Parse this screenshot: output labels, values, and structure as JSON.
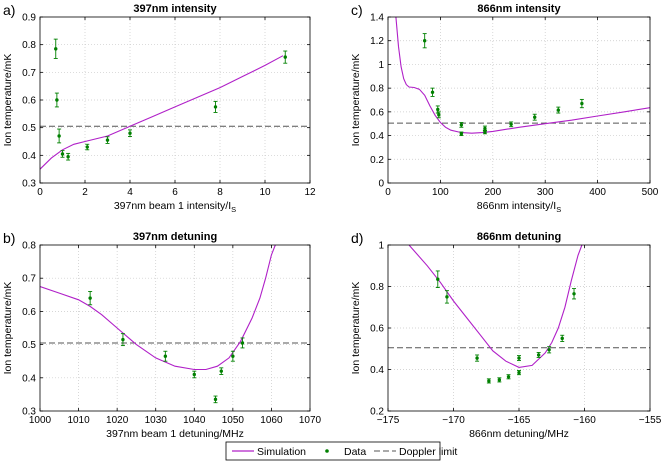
{
  "legend": {
    "simulation": "Simulation",
    "data": "Data",
    "doppler": "Doppler limit"
  },
  "colors": {
    "simulation": "#b020c8",
    "data": "#008000",
    "doppler": "#555555",
    "grid": "#c8c8c8"
  },
  "chart_data": [
    {
      "id": "a",
      "letter": "a)",
      "type": "scatter",
      "title": "397nm intensity",
      "xlabel": "397nm beam 1 intensity/I",
      "xlabel_sub": "S",
      "ylabel": "Ion temperature/mK",
      "xlim": [
        0,
        12
      ],
      "ylim": [
        0.3,
        0.9
      ],
      "xticks": [
        0,
        2,
        4,
        6,
        8,
        10,
        12
      ],
      "yticks": [
        0.3,
        0.4,
        0.5,
        0.6,
        0.7,
        0.8,
        0.9
      ],
      "xtick_labels": [
        "0",
        "2",
        "4",
        "6",
        "8",
        "10",
        "12"
      ],
      "ytick_labels": [
        "0.3",
        "0.4",
        "0.5",
        "0.6",
        "0.7",
        "0.8",
        "0.9"
      ],
      "doppler_limit": 0.505,
      "simulation": {
        "x": [
          0.0,
          0.5,
          1.0,
          1.5,
          2.0,
          3.0,
          4.0,
          5.0,
          6.0,
          7.0,
          8.0,
          9.0,
          10.0,
          10.8
        ],
        "y": [
          0.35,
          0.39,
          0.42,
          0.44,
          0.45,
          0.47,
          0.505,
          0.54,
          0.575,
          0.61,
          0.645,
          0.685,
          0.725,
          0.76
        ]
      },
      "data": [
        {
          "x": 0.7,
          "y": 0.785,
          "err": 0.035
        },
        {
          "x": 0.75,
          "y": 0.6,
          "err": 0.025
        },
        {
          "x": 0.85,
          "y": 0.47,
          "err": 0.025
        },
        {
          "x": 1.0,
          "y": 0.405,
          "err": 0.012
        },
        {
          "x": 1.25,
          "y": 0.395,
          "err": 0.012
        },
        {
          "x": 2.1,
          "y": 0.43,
          "err": 0.01
        },
        {
          "x": 3.0,
          "y": 0.455,
          "err": 0.012
        },
        {
          "x": 4.0,
          "y": 0.48,
          "err": 0.012
        },
        {
          "x": 7.8,
          "y": 0.575,
          "err": 0.02
        },
        {
          "x": 10.9,
          "y": 0.755,
          "err": 0.022
        }
      ]
    },
    {
      "id": "c",
      "letter": "c)",
      "type": "scatter",
      "title": "866nm intensity",
      "xlabel": "866nm intensity/I",
      "xlabel_sub": "S",
      "ylabel": "Ion temperature/mK",
      "xlim": [
        0,
        500
      ],
      "ylim": [
        0,
        1.4
      ],
      "xticks": [
        0,
        100,
        200,
        300,
        400,
        500
      ],
      "yticks": [
        0,
        0.2,
        0.4,
        0.6,
        0.8,
        1.0,
        1.2,
        1.4
      ],
      "xtick_labels": [
        "0",
        "100",
        "200",
        "300",
        "400",
        "500"
      ],
      "ytick_labels": [
        "0",
        "0.2",
        "0.4",
        "0.6",
        "0.8",
        "1",
        "1.2",
        "1.4"
      ],
      "doppler_limit": 0.505,
      "simulation": {
        "x": [
          15,
          20,
          25,
          30,
          35,
          40,
          50,
          60,
          70,
          80,
          90,
          100,
          110,
          120,
          140,
          160,
          180,
          200,
          250,
          300,
          350,
          400,
          450,
          500
        ],
        "y": [
          1.4,
          1.15,
          0.98,
          0.88,
          0.83,
          0.81,
          0.805,
          0.79,
          0.74,
          0.65,
          0.57,
          0.51,
          0.47,
          0.445,
          0.425,
          0.42,
          0.425,
          0.435,
          0.47,
          0.5,
          0.53,
          0.565,
          0.6,
          0.635
        ]
      },
      "data": [
        {
          "x": 70,
          "y": 1.2,
          "err": 0.06
        },
        {
          "x": 85,
          "y": 0.765,
          "err": 0.035
        },
        {
          "x": 95,
          "y": 0.62,
          "err": 0.03
        },
        {
          "x": 97,
          "y": 0.575,
          "err": 0.025
        },
        {
          "x": 140,
          "y": 0.49,
          "err": 0.02
        },
        {
          "x": 140,
          "y": 0.415,
          "err": 0.015
        },
        {
          "x": 185,
          "y": 0.46,
          "err": 0.02
        },
        {
          "x": 185,
          "y": 0.43,
          "err": 0.015
        },
        {
          "x": 235,
          "y": 0.495,
          "err": 0.02
        },
        {
          "x": 280,
          "y": 0.555,
          "err": 0.025
        },
        {
          "x": 325,
          "y": 0.615,
          "err": 0.025
        },
        {
          "x": 370,
          "y": 0.67,
          "err": 0.035
        }
      ]
    },
    {
      "id": "b",
      "letter": "b)",
      "type": "scatter",
      "title": "397nm detuning",
      "xlabel": "397nm beam 1 detuning/MHz",
      "xlabel_sub": "",
      "ylabel": "Ion temperature/mK",
      "xlim": [
        1000,
        1070
      ],
      "ylim": [
        0.3,
        0.8
      ],
      "xticks": [
        1000,
        1010,
        1020,
        1030,
        1040,
        1050,
        1060,
        1070
      ],
      "yticks": [
        0.3,
        0.4,
        0.5,
        0.6,
        0.7,
        0.8
      ],
      "xtick_labels": [
        "1000",
        "1010",
        "1020",
        "1030",
        "1040",
        "1050",
        "1060",
        "1070"
      ],
      "ytick_labels": [
        "0.3",
        "0.4",
        "0.5",
        "0.6",
        "0.7",
        "0.8"
      ],
      "doppler_limit": 0.505,
      "simulation": {
        "x": [
          1000,
          1005,
          1010,
          1013,
          1016,
          1020,
          1025,
          1030,
          1035,
          1040,
          1043,
          1046,
          1049,
          1052,
          1055,
          1057,
          1058.5,
          1060,
          1061
        ],
        "y": [
          0.675,
          0.655,
          0.635,
          0.615,
          0.59,
          0.55,
          0.5,
          0.46,
          0.435,
          0.425,
          0.425,
          0.435,
          0.46,
          0.51,
          0.58,
          0.64,
          0.7,
          0.77,
          0.8
        ]
      },
      "data": [
        {
          "x": 1013,
          "y": 0.64,
          "err": 0.02
        },
        {
          "x": 1021.5,
          "y": 0.515,
          "err": 0.018
        },
        {
          "x": 1032.5,
          "y": 0.465,
          "err": 0.015
        },
        {
          "x": 1040,
          "y": 0.41,
          "err": 0.01
        },
        {
          "x": 1045.5,
          "y": 0.335,
          "err": 0.01
        },
        {
          "x": 1047,
          "y": 0.42,
          "err": 0.01
        },
        {
          "x": 1050,
          "y": 0.465,
          "err": 0.015
        },
        {
          "x": 1052.5,
          "y": 0.505,
          "err": 0.015
        }
      ]
    },
    {
      "id": "d",
      "letter": "d)",
      "type": "scatter",
      "title": "866nm detuning",
      "xlabel": "866nm detuning/MHz",
      "xlabel_sub": "",
      "ylabel": "Ion temperature/mK",
      "xlim": [
        -175,
        -155
      ],
      "ylim": [
        0.2,
        1.0
      ],
      "xticks": [
        -175,
        -170,
        -165,
        -160,
        -155
      ],
      "yticks": [
        0.2,
        0.4,
        0.6,
        0.8,
        1.0
      ],
      "xtick_labels": [
        "−175",
        "−170",
        "−165",
        "−160",
        "−155"
      ],
      "ytick_labels": [
        "0.2",
        "0.4",
        "0.6",
        "0.8",
        "1"
      ],
      "doppler_limit": 0.505,
      "simulation": {
        "x": [
          -173.4,
          -172,
          -171,
          -170,
          -169,
          -168,
          -167,
          -166,
          -165,
          -164,
          -163,
          -162.5,
          -162,
          -161.5,
          -161,
          -160.5,
          -160.2
        ],
        "y": [
          1.0,
          0.9,
          0.82,
          0.73,
          0.65,
          0.57,
          0.49,
          0.44,
          0.41,
          0.42,
          0.48,
          0.53,
          0.6,
          0.7,
          0.83,
          0.95,
          1.0
        ]
      },
      "data": [
        {
          "x": -171.2,
          "y": 0.835,
          "err": 0.04
        },
        {
          "x": -170.5,
          "y": 0.75,
          "err": 0.03
        },
        {
          "x": -168.2,
          "y": 0.455,
          "err": 0.015
        },
        {
          "x": -167.3,
          "y": 0.345,
          "err": 0.01
        },
        {
          "x": -166.5,
          "y": 0.35,
          "err": 0.01
        },
        {
          "x": -165.8,
          "y": 0.365,
          "err": 0.01
        },
        {
          "x": -165.0,
          "y": 0.385,
          "err": 0.01
        },
        {
          "x": -165.0,
          "y": 0.455,
          "err": 0.012
        },
        {
          "x": -163.5,
          "y": 0.47,
          "err": 0.012
        },
        {
          "x": -162.7,
          "y": 0.495,
          "err": 0.015
        },
        {
          "x": -161.7,
          "y": 0.55,
          "err": 0.015
        },
        {
          "x": -160.8,
          "y": 0.765,
          "err": 0.025
        }
      ]
    }
  ]
}
